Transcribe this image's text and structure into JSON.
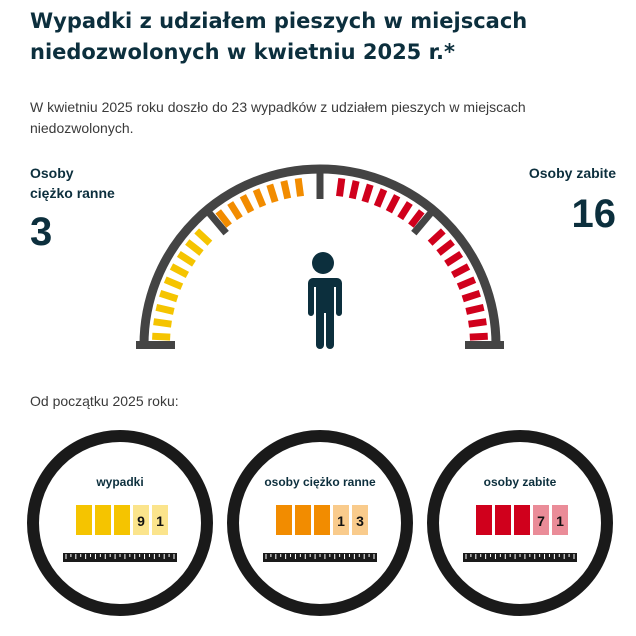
{
  "header": {
    "title": "Wypadki z udziałem pieszych w miejscach niedozwolonych w kwietniu 2025 r.*",
    "intro": "W kwietniu 2025 roku doszło do 23 wypadków z udziałem pieszych w miejscach niedozwolonych."
  },
  "stats": {
    "injured_label_1": "Osoby",
    "injured_label_2": "ciężko ranne",
    "injured_value": "3",
    "killed_label": "Osoby zabite",
    "killed_value": "16"
  },
  "gauge": {
    "colors": {
      "yellow": "#f5c400",
      "orange": "#f28c00",
      "red": "#d0001c",
      "frame": "#444444",
      "person": "#0c2f3d"
    },
    "icon": "person-icon"
  },
  "since_label": "Od początku 2025 roku:",
  "counters": [
    {
      "label": "wypadki",
      "digits": [
        "",
        "",
        "",
        "9",
        "1"
      ],
      "color": "#f5c400"
    },
    {
      "label": "osoby ciężko ranne",
      "digits": [
        "",
        "",
        "",
        "1",
        "3"
      ],
      "color": "#f28c00"
    },
    {
      "label": "osoby zabite",
      "digits": [
        "",
        "",
        "",
        "7",
        "1"
      ],
      "color": "#d0001c"
    }
  ]
}
